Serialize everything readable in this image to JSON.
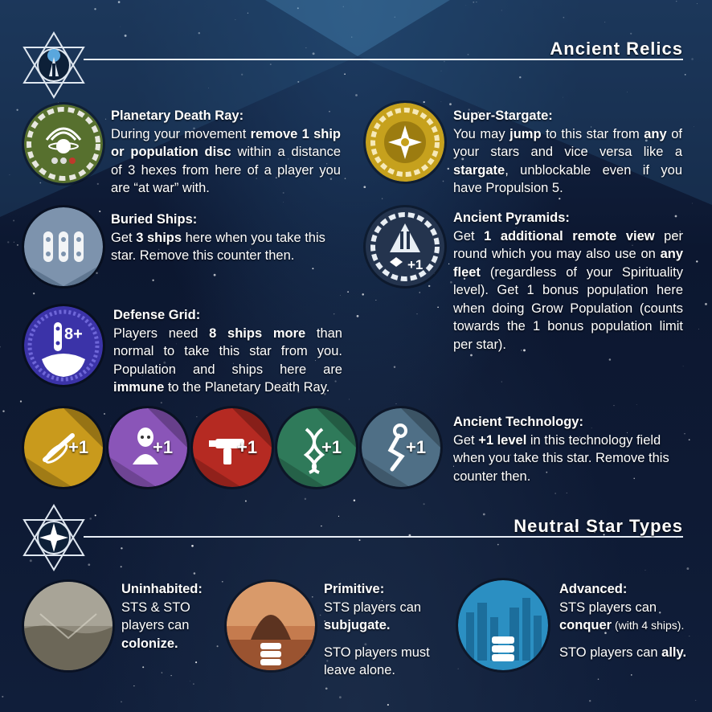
{
  "sections": {
    "relics_title": "Ancient Relics",
    "neutral_title": "Neutral Star Types"
  },
  "relics": {
    "death_ray": {
      "heading": "Planetary Death Ray:",
      "t1": "During your movement ",
      "b1": "remove 1 ship or population disc",
      "t2": " within a distance of 3 hexes from here of a player you are “at war” with."
    },
    "buried_ships": {
      "heading": "Buried Ships:",
      "t1": "Get ",
      "b1": "3 ships",
      "t2": " here when you take this star. Remove this counter then."
    },
    "defense_grid": {
      "heading": "Defense Grid:",
      "badge": "8+",
      "t1": "Players need ",
      "b1": "8 ships more",
      "t2": " than normal to take this star from you. Population and ships here are ",
      "b2": "immune",
      "t3": " to the Planetary Death Ray."
    },
    "super_stargate": {
      "heading": "Super-Stargate:",
      "t1": "You may ",
      "b1": "jump",
      "t2": " to this star from ",
      "b2": "any",
      "t3": " of your stars and vice versa like a ",
      "b3": "stargate",
      "t4": ", unblockable even if you have Propulsion 5."
    },
    "pyramids": {
      "heading": "Ancient Pyramids:",
      "badge": "+1",
      "t1": "Get ",
      "b1": "1 additional remote view",
      "t2": " per round which you may also use on ",
      "b2": "any fleet",
      "t3": " (regardless of your Spirituality level). Get 1 bonus population here when doing Grow Population (counts towards the 1 bonus population limit per star)."
    },
    "technology": {
      "heading": "Ancient Technology:",
      "t1": "Get ",
      "b1": "+1 level",
      "t2": " in this technology field when you take this star. Remove this counter then.",
      "badges": [
        "+1",
        "+1",
        "+1",
        "+1",
        "+1"
      ],
      "fields": [
        "propulsion-icon",
        "spirituality-icon",
        "weapons-icon",
        "genetics-icon",
        "robotics-icon"
      ],
      "colors": [
        "#c99a1c",
        "#8a55b8",
        "#b52a22",
        "#2f7a5a",
        "#4f6f86"
      ]
    }
  },
  "neutral": {
    "uninhabited": {
      "heading": "Uninhabited:",
      "t1": "STS & STO players can ",
      "b1": "colonize."
    },
    "primitive": {
      "heading": "Primitive:",
      "t1": "STS players can ",
      "b1": "subjugate.",
      "t2": "STO players must leave alone."
    },
    "advanced": {
      "heading": "Advanced:",
      "t1": "STS players can ",
      "b1": "conquer",
      "t2": " (with 4 ships).",
      "t3": "STO players can ",
      "b3": "ally."
    }
  }
}
